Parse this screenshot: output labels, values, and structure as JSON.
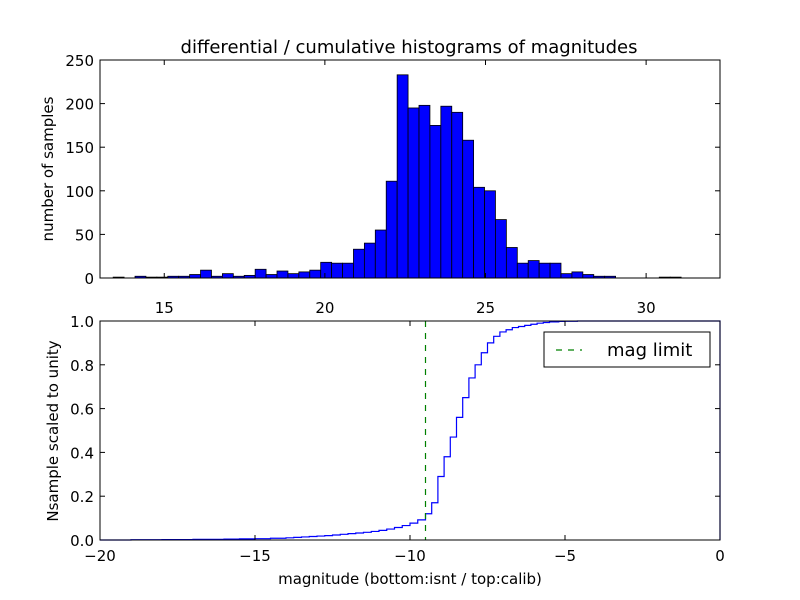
{
  "figure": {
    "title": "differential / cumulative histograms of magnitudes"
  },
  "chart_data": [
    {
      "type": "bar",
      "title": "differential / cumulative histograms of magnitudes",
      "xlabel": "",
      "ylabel": "number of samples",
      "xlim": [
        13.0,
        32.3
      ],
      "ylim": [
        0,
        250
      ],
      "xticks": [
        15,
        20,
        25,
        30
      ],
      "yticks": [
        0,
        50,
        100,
        150,
        200,
        250
      ],
      "x_tick_position": "bottom",
      "bar_color": "#0000ff",
      "bin_width": 0.34,
      "bin_start": 13.07,
      "values": [
        0,
        1,
        0,
        2,
        1,
        1,
        2,
        2,
        4,
        9,
        2,
        5,
        2,
        3,
        10,
        4,
        8,
        5,
        7,
        9,
        18,
        17,
        17,
        33,
        40,
        55,
        111,
        233,
        195,
        198,
        175,
        197,
        190,
        158,
        104,
        100,
        67,
        35,
        17,
        20,
        17,
        17,
        5,
        7,
        4,
        2,
        2,
        0,
        0,
        0,
        0,
        1,
        1,
        0,
        0,
        0
      ]
    },
    {
      "type": "line",
      "xlabel": "magnitude (bottom:isnt / top:calib)",
      "ylabel": "Nsample scaled to unity",
      "xlim": [
        -20,
        0
      ],
      "ylim": [
        0.0,
        1.0
      ],
      "xticks": [
        -20,
        -15,
        -10,
        -5,
        0
      ],
      "yticks": [
        0.0,
        0.2,
        0.4,
        0.6,
        0.8,
        1.0
      ],
      "series": [
        {
          "name": "",
          "color": "#0000ff",
          "style": "steps",
          "x": [
            -20,
            -19,
            -18,
            -17,
            -16,
            -15.5,
            -15,
            -14.5,
            -14,
            -13.75,
            -13.5,
            -13.25,
            -13,
            -12.75,
            -12.5,
            -12.25,
            -12,
            -11.75,
            -11.5,
            -11.25,
            -11,
            -10.75,
            -10.5,
            -10.25,
            -10,
            -9.75,
            -9.5,
            -9.3,
            -9.1,
            -8.9,
            -8.7,
            -8.5,
            -8.3,
            -8.1,
            -7.9,
            -7.7,
            -7.5,
            -7.3,
            -7.1,
            -6.9,
            -6.7,
            -6.5,
            -6.3,
            -6.1,
            -5.9,
            -5.7,
            -5.5,
            -5.2,
            -5.0,
            -4.6,
            0
          ],
          "y": [
            0.0,
            0.001,
            0.002,
            0.003,
            0.004,
            0.005,
            0.006,
            0.008,
            0.01,
            0.012,
            0.014,
            0.016,
            0.018,
            0.02,
            0.023,
            0.026,
            0.029,
            0.032,
            0.035,
            0.039,
            0.044,
            0.05,
            0.057,
            0.066,
            0.077,
            0.092,
            0.12,
            0.17,
            0.29,
            0.38,
            0.47,
            0.56,
            0.65,
            0.74,
            0.8,
            0.855,
            0.9,
            0.93,
            0.95,
            0.96,
            0.97,
            0.975,
            0.98,
            0.985,
            0.99,
            0.993,
            0.996,
            0.998,
            0.999,
            1.0,
            1.0
          ]
        },
        {
          "name": "mag limit",
          "color": "#008000",
          "style": "dashed-vertical",
          "x_value": -9.5
        }
      ],
      "legend": {
        "placement": "top-right",
        "entries": [
          "mag limit"
        ]
      }
    }
  ]
}
